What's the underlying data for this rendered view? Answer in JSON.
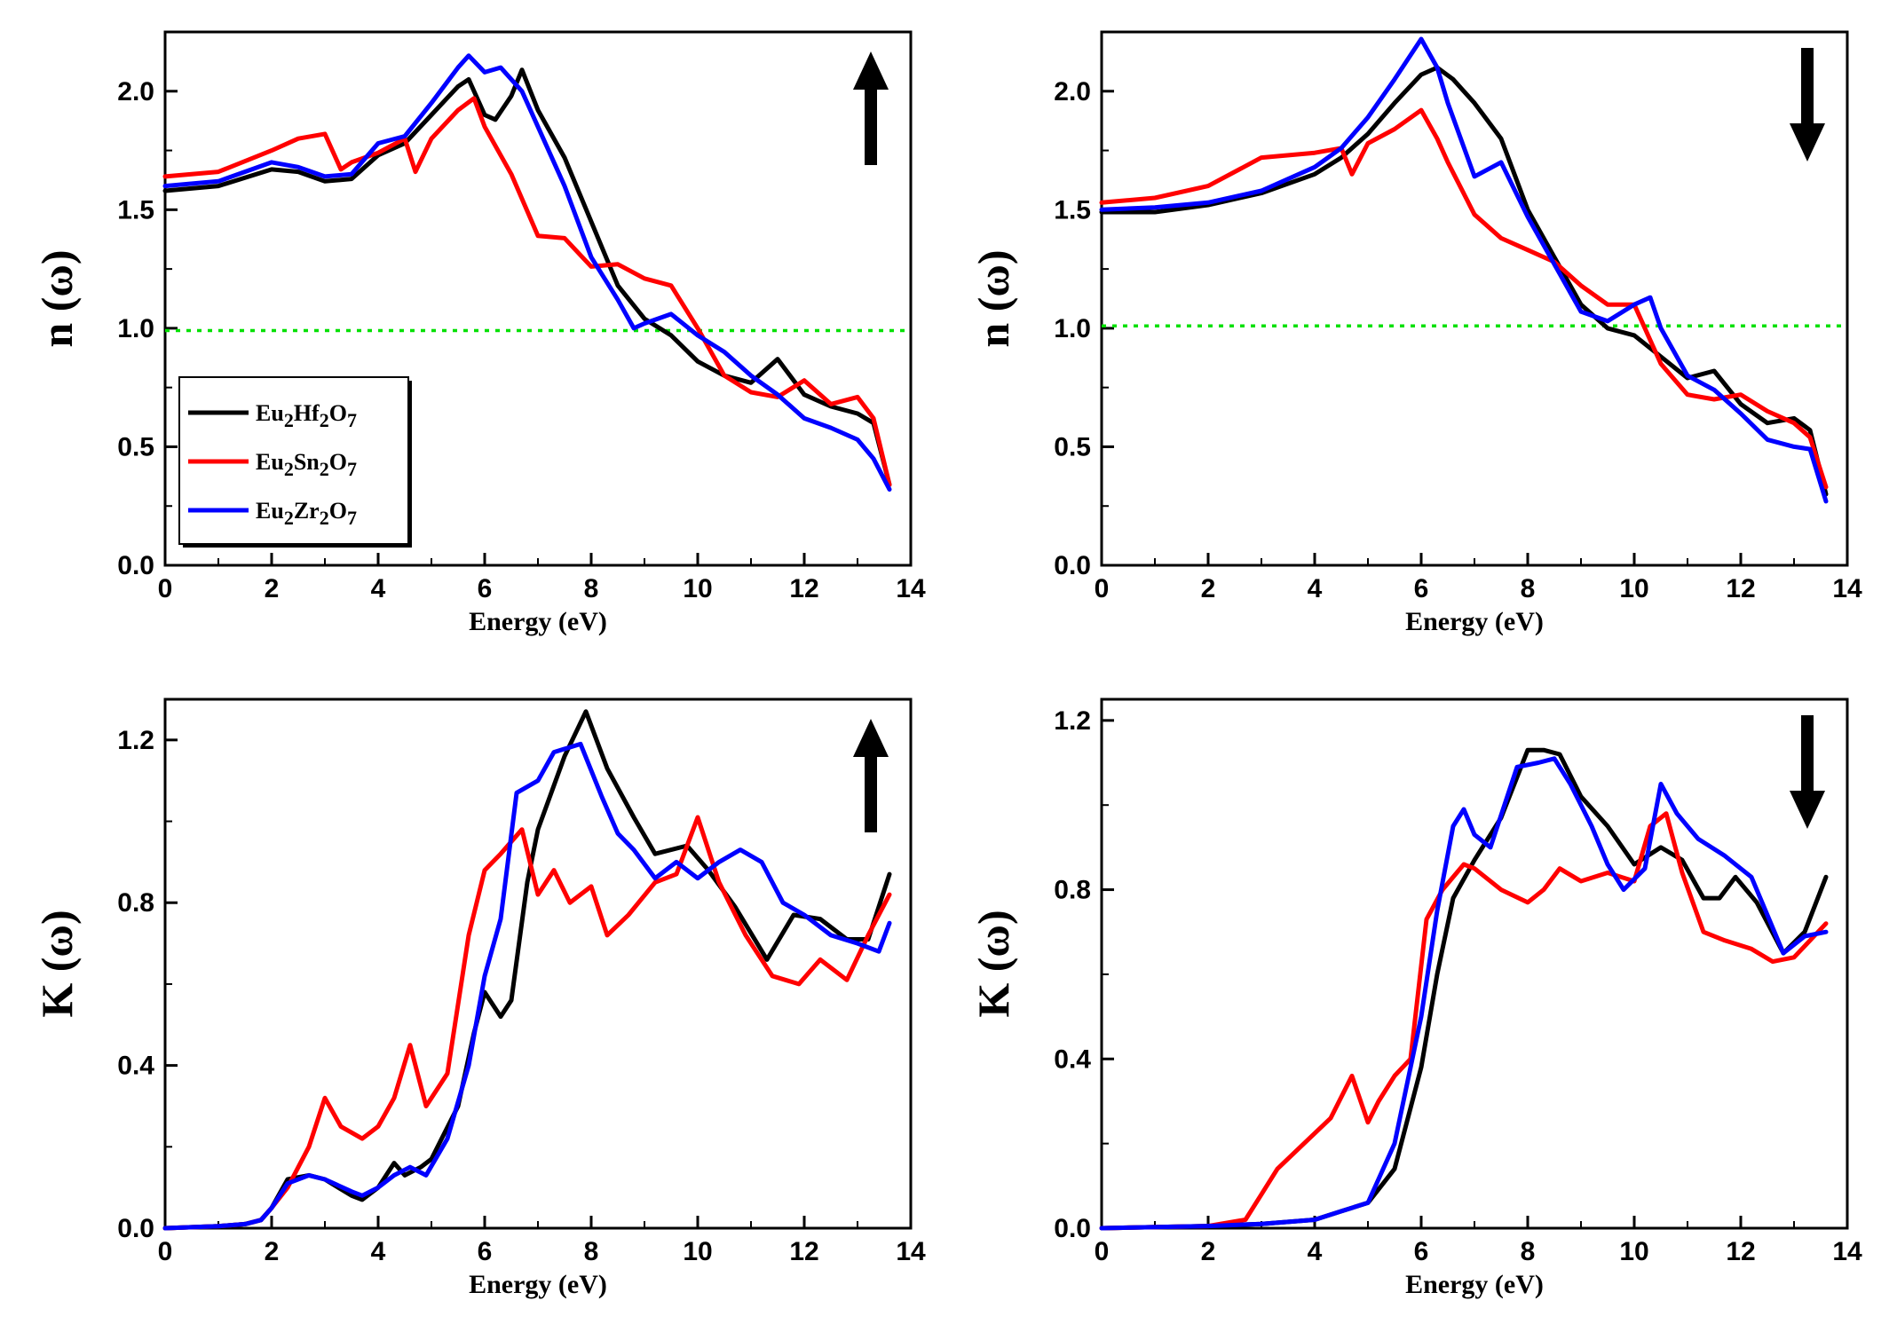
{
  "colors": {
    "Eu2Hf2O7": "#000000",
    "Eu2Sn2O7": "#ff0000",
    "Eu2Zr2O7": "#0000ff",
    "reference_line": "#00e000"
  },
  "legend": [
    {
      "key": "Eu2Hf2O7",
      "base": "Eu",
      "sub1": "2",
      "mid": "Hf",
      "sub2": "2",
      "o": "O",
      "sub3": "7"
    },
    {
      "key": "Eu2Sn2O7",
      "base": "Eu",
      "sub1": "2",
      "mid": "Sn",
      "sub2": "2",
      "o": "O",
      "sub3": "7"
    },
    {
      "key": "Eu2Zr2O7",
      "base": "Eu",
      "sub1": "2",
      "mid": "Zr",
      "sub2": "2",
      "o": "O",
      "sub3": "7"
    }
  ],
  "chart_data": [
    {
      "type": "line",
      "panel": "top-left",
      "ylabel": "n (ω)",
      "xlabel": "Energy (eV)",
      "xlim": [
        0,
        14
      ],
      "ylim": [
        0,
        2.25
      ],
      "xticks": [
        "0",
        "2",
        "4",
        "6",
        "8",
        "10",
        "12",
        "14"
      ],
      "yticks": [
        "0.0",
        "0.5",
        "1.0",
        "1.5",
        "2.0"
      ],
      "ytick_values": [
        0,
        0.5,
        1.0,
        1.5,
        2.0
      ],
      "spin_arrow": "up",
      "reference_line": 0.99,
      "legend": "top-left",
      "series": [
        {
          "name": "Eu2Hf2O7",
          "x": [
            0,
            1,
            2,
            2.5,
            3,
            3.5,
            4,
            4.5,
            5,
            5.5,
            5.7,
            6,
            6.2,
            6.5,
            6.7,
            7,
            7.5,
            8,
            8.5,
            9,
            9.5,
            10,
            10.5,
            11,
            11.5,
            12,
            12.5,
            13,
            13.3,
            13.6
          ],
          "y": [
            1.58,
            1.6,
            1.67,
            1.66,
            1.62,
            1.63,
            1.73,
            1.78,
            1.9,
            2.02,
            2.05,
            1.9,
            1.88,
            1.98,
            2.09,
            1.92,
            1.72,
            1.45,
            1.18,
            1.04,
            0.97,
            0.86,
            0.8,
            0.77,
            0.87,
            0.72,
            0.67,
            0.64,
            0.6,
            0.34
          ]
        },
        {
          "name": "Eu2Sn2O7",
          "x": [
            0,
            1,
            2,
            2.5,
            3,
            3.3,
            3.5,
            4,
            4.5,
            4.7,
            5,
            5.5,
            5.8,
            6,
            6.5,
            7,
            7.5,
            8,
            8.5,
            9,
            9.5,
            10,
            10.5,
            11,
            11.5,
            12,
            12.5,
            13,
            13.3,
            13.6
          ],
          "y": [
            1.64,
            1.66,
            1.75,
            1.8,
            1.82,
            1.67,
            1.7,
            1.74,
            1.8,
            1.66,
            1.8,
            1.92,
            1.97,
            1.85,
            1.65,
            1.39,
            1.38,
            1.26,
            1.27,
            1.21,
            1.18,
            1.0,
            0.8,
            0.73,
            0.71,
            0.78,
            0.68,
            0.71,
            0.62,
            0.34
          ]
        },
        {
          "name": "Eu2Zr2O7",
          "x": [
            0,
            1,
            2,
            2.5,
            3,
            3.5,
            4,
            4.5,
            5,
            5.5,
            5.7,
            6,
            6.3,
            6.7,
            7,
            7.5,
            8,
            8.5,
            8.8,
            9,
            9.5,
            10,
            10.5,
            11,
            11.5,
            12,
            12.5,
            13,
            13.3,
            13.6
          ],
          "y": [
            1.6,
            1.62,
            1.7,
            1.68,
            1.64,
            1.65,
            1.78,
            1.81,
            1.95,
            2.1,
            2.15,
            2.08,
            2.1,
            2.0,
            1.85,
            1.6,
            1.3,
            1.12,
            1.0,
            1.02,
            1.06,
            0.97,
            0.9,
            0.8,
            0.72,
            0.62,
            0.58,
            0.53,
            0.45,
            0.32
          ]
        }
      ]
    },
    {
      "type": "line",
      "panel": "top-right",
      "ylabel": "n (ω)",
      "xlabel": "Energy (eV)",
      "xlim": [
        0,
        14
      ],
      "ylim": [
        0,
        2.25
      ],
      "xticks": [
        "0",
        "2",
        "4",
        "6",
        "8",
        "10",
        "12",
        "14"
      ],
      "yticks": [
        "0.0",
        "0.5",
        "1.0",
        "1.5",
        "2.0"
      ],
      "ytick_values": [
        0,
        0.5,
        1.0,
        1.5,
        2.0
      ],
      "spin_arrow": "down",
      "reference_line": 1.01,
      "series": [
        {
          "name": "Eu2Hf2O7",
          "x": [
            0,
            1,
            2,
            3,
            4,
            4.5,
            5,
            5.5,
            6,
            6.3,
            6.6,
            7,
            7.5,
            8,
            8.5,
            9,
            9.5,
            10,
            10.5,
            11,
            11.5,
            12,
            12.5,
            13,
            13.3,
            13.6
          ],
          "y": [
            1.49,
            1.49,
            1.52,
            1.57,
            1.65,
            1.72,
            1.82,
            1.95,
            2.07,
            2.1,
            2.05,
            1.95,
            1.8,
            1.5,
            1.3,
            1.1,
            1.0,
            0.97,
            0.88,
            0.79,
            0.82,
            0.68,
            0.6,
            0.62,
            0.57,
            0.3
          ]
        },
        {
          "name": "Eu2Sn2O7",
          "x": [
            0,
            1,
            2,
            3,
            4,
            4.5,
            4.7,
            5,
            5.5,
            6,
            6.3,
            6.5,
            7,
            7.5,
            8,
            8.5,
            9,
            9.5,
            10,
            10.5,
            11,
            11.5,
            12,
            12.5,
            13,
            13.3,
            13.6
          ],
          "y": [
            1.53,
            1.55,
            1.6,
            1.72,
            1.74,
            1.76,
            1.65,
            1.78,
            1.84,
            1.92,
            1.8,
            1.7,
            1.48,
            1.38,
            1.33,
            1.28,
            1.18,
            1.1,
            1.1,
            0.85,
            0.72,
            0.7,
            0.72,
            0.65,
            0.6,
            0.54,
            0.33
          ]
        },
        {
          "name": "Eu2Zr2O7",
          "x": [
            0,
            1,
            2,
            3,
            4,
            4.5,
            5,
            5.5,
            6,
            6.3,
            6.5,
            7,
            7.5,
            8,
            8.5,
            9,
            9.5,
            10,
            10.3,
            10.5,
            11,
            11.5,
            12,
            12.5,
            13,
            13.3,
            13.6
          ],
          "y": [
            1.5,
            1.51,
            1.53,
            1.58,
            1.68,
            1.76,
            1.89,
            2.05,
            2.22,
            2.1,
            1.95,
            1.64,
            1.7,
            1.47,
            1.27,
            1.07,
            1.03,
            1.1,
            1.13,
            1.0,
            0.8,
            0.74,
            0.64,
            0.53,
            0.5,
            0.49,
            0.27
          ]
        }
      ]
    },
    {
      "type": "line",
      "panel": "bottom-left",
      "ylabel": "K (ω)",
      "xlabel": "Energy (eV)",
      "xlim": [
        0,
        14
      ],
      "ylim": [
        0,
        1.3
      ],
      "xticks": [
        "0",
        "2",
        "4",
        "6",
        "8",
        "10",
        "12",
        "14"
      ],
      "yticks": [
        "0.0",
        "0.4",
        "0.8",
        "1.2"
      ],
      "ytick_values": [
        0,
        0.4,
        0.8,
        1.2
      ],
      "spin_arrow": "up",
      "series": [
        {
          "name": "Eu2Hf2O7",
          "x": [
            0,
            1,
            1.5,
            1.8,
            2,
            2.3,
            2.7,
            3,
            3.5,
            3.7,
            4,
            4.3,
            4.5,
            4.8,
            5,
            5.5,
            5.8,
            6,
            6.3,
            6.5,
            6.8,
            7,
            7.5,
            7.9,
            8.3,
            8.8,
            9.2,
            9.8,
            10.2,
            10.7,
            11.3,
            11.8,
            12.3,
            12.8,
            13.2,
            13.6
          ],
          "y": [
            0,
            0.005,
            0.01,
            0.02,
            0.05,
            0.12,
            0.13,
            0.12,
            0.08,
            0.07,
            0.1,
            0.16,
            0.13,
            0.15,
            0.17,
            0.3,
            0.48,
            0.58,
            0.52,
            0.56,
            0.85,
            0.98,
            1.16,
            1.27,
            1.13,
            1.01,
            0.92,
            0.94,
            0.88,
            0.79,
            0.66,
            0.77,
            0.76,
            0.71,
            0.71,
            0.87
          ]
        },
        {
          "name": "Eu2Sn2O7",
          "x": [
            0,
            1,
            1.5,
            1.8,
            2,
            2.3,
            2.7,
            3,
            3.3,
            3.7,
            4,
            4.3,
            4.6,
            4.9,
            5.3,
            5.7,
            6,
            6.3,
            6.7,
            7,
            7.3,
            7.6,
            8,
            8.3,
            8.7,
            9.2,
            9.6,
            10,
            10.4,
            10.9,
            11.4,
            11.9,
            12.3,
            12.8,
            13.2,
            13.6
          ],
          "y": [
            0,
            0.005,
            0.01,
            0.02,
            0.05,
            0.1,
            0.2,
            0.32,
            0.25,
            0.22,
            0.25,
            0.32,
            0.45,
            0.3,
            0.38,
            0.72,
            0.88,
            0.92,
            0.98,
            0.82,
            0.88,
            0.8,
            0.84,
            0.72,
            0.77,
            0.85,
            0.87,
            1.01,
            0.85,
            0.72,
            0.62,
            0.6,
            0.66,
            0.61,
            0.72,
            0.82
          ]
        },
        {
          "name": "Eu2Zr2O7",
          "x": [
            0,
            1,
            1.5,
            1.8,
            2,
            2.3,
            2.7,
            3,
            3.5,
            3.7,
            4,
            4.3,
            4.6,
            4.9,
            5.3,
            5.7,
            6,
            6.3,
            6.6,
            7,
            7.3,
            7.8,
            8.2,
            8.5,
            8.8,
            9.2,
            9.6,
            10,
            10.4,
            10.8,
            11.2,
            11.6,
            12,
            12.5,
            13,
            13.4,
            13.6
          ],
          "y": [
            0,
            0.005,
            0.01,
            0.02,
            0.05,
            0.11,
            0.13,
            0.12,
            0.09,
            0.08,
            0.1,
            0.13,
            0.15,
            0.13,
            0.22,
            0.4,
            0.62,
            0.76,
            1.07,
            1.1,
            1.17,
            1.19,
            1.06,
            0.97,
            0.93,
            0.86,
            0.9,
            0.86,
            0.9,
            0.93,
            0.9,
            0.8,
            0.77,
            0.72,
            0.7,
            0.68,
            0.75
          ]
        }
      ]
    },
    {
      "type": "line",
      "panel": "bottom-right",
      "ylabel": "K (ω)",
      "xlabel": "Energy (eV)",
      "xlim": [
        0,
        14
      ],
      "ylim": [
        0,
        1.25
      ],
      "xticks": [
        "0",
        "2",
        "4",
        "6",
        "8",
        "10",
        "12",
        "14"
      ],
      "yticks": [
        "0.0",
        "0.4",
        "0.8",
        "1.2"
      ],
      "ytick_values": [
        0,
        0.4,
        0.8,
        1.2
      ],
      "spin_arrow": "down",
      "series": [
        {
          "name": "Eu2Hf2O7",
          "x": [
            0,
            2,
            3,
            4,
            4.5,
            5,
            5.5,
            6,
            6.3,
            6.6,
            7,
            7.5,
            8,
            8.3,
            8.6,
            9,
            9.5,
            10,
            10.5,
            10.9,
            11.3,
            11.6,
            11.9,
            12.3,
            12.8,
            13.2,
            13.6
          ],
          "y": [
            0,
            0.005,
            0.01,
            0.02,
            0.04,
            0.06,
            0.14,
            0.38,
            0.6,
            0.78,
            0.87,
            0.97,
            1.13,
            1.13,
            1.12,
            1.02,
            0.95,
            0.86,
            0.9,
            0.87,
            0.78,
            0.78,
            0.83,
            0.77,
            0.65,
            0.7,
            0.83
          ]
        },
        {
          "name": "Eu2Sn2O7",
          "x": [
            0,
            2,
            2.7,
            3,
            3.3,
            3.8,
            4.3,
            4.7,
            5,
            5.2,
            5.5,
            5.8,
            6.1,
            6.4,
            6.8,
            7,
            7.5,
            8,
            8.3,
            8.6,
            9,
            9.5,
            10,
            10.3,
            10.6,
            10.9,
            11.3,
            11.7,
            12.2,
            12.6,
            13,
            13.3,
            13.6
          ],
          "y": [
            0,
            0.005,
            0.02,
            0.08,
            0.14,
            0.2,
            0.26,
            0.36,
            0.25,
            0.3,
            0.36,
            0.4,
            0.73,
            0.8,
            0.86,
            0.85,
            0.8,
            0.77,
            0.8,
            0.85,
            0.82,
            0.84,
            0.82,
            0.95,
            0.98,
            0.84,
            0.7,
            0.68,
            0.66,
            0.63,
            0.64,
            0.68,
            0.72
          ]
        },
        {
          "name": "Eu2Zr2O7",
          "x": [
            0,
            2,
            3,
            4,
            4.5,
            5,
            5.5,
            6,
            6.3,
            6.6,
            6.8,
            7,
            7.3,
            7.8,
            8.2,
            8.5,
            8.8,
            9.2,
            9.5,
            9.8,
            10.2,
            10.5,
            10.8,
            11.2,
            11.7,
            12.2,
            12.8,
            13.2,
            13.6
          ],
          "y": [
            0,
            0.005,
            0.01,
            0.02,
            0.04,
            0.06,
            0.2,
            0.5,
            0.75,
            0.95,
            0.99,
            0.93,
            0.9,
            1.09,
            1.1,
            1.11,
            1.05,
            0.95,
            0.86,
            0.8,
            0.85,
            1.05,
            0.98,
            0.92,
            0.88,
            0.83,
            0.65,
            0.69,
            0.7
          ]
        }
      ]
    }
  ]
}
